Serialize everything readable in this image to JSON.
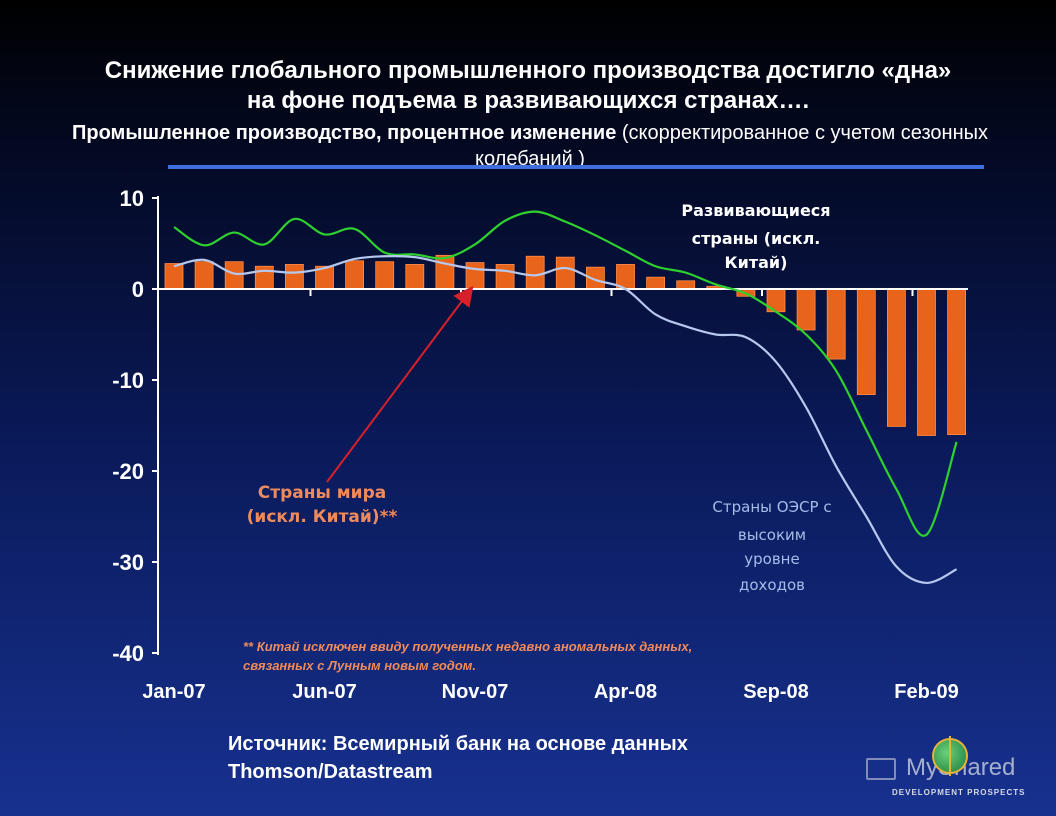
{
  "header": {
    "title_line1": "Снижение глобального промышленного производства достигло «дна»",
    "title_line2": "на фоне подъема в развивающихся странах….",
    "subtitle_bold": "Промышленное производство, процентное изменение",
    "subtitle_rest": " (скорректированное с учетом сезонных колебаний )"
  },
  "colors": {
    "bar": "#e8641a",
    "developing_line": "#2ed12e",
    "oecd_line": "#b6c8ee",
    "arrow": "#d6202a",
    "world_label": "#f08a5a",
    "oecd_label": "#a6bce8"
  },
  "chart_data": {
    "type": "bar+line",
    "x_tick_labels": [
      "Jan-07",
      "Jun-07",
      "Nov-07",
      "Apr-08",
      "Sep-08",
      "Feb-09"
    ],
    "y_tick_labels": [
      "10",
      "0",
      "-10",
      "-20",
      "-30",
      "-40"
    ],
    "ylim": [
      -40,
      10
    ],
    "categories": [
      "Jan-07",
      "Feb-07",
      "Mar-07",
      "Apr-07",
      "May-07",
      "Jun-07",
      "Jul-07",
      "Aug-07",
      "Sep-07",
      "Oct-07",
      "Nov-07",
      "Dec-07",
      "Jan-08",
      "Feb-08",
      "Mar-08",
      "Apr-08",
      "May-08",
      "Jun-08",
      "Jul-08",
      "Aug-08",
      "Sep-08",
      "Oct-08",
      "Nov-08",
      "Dec-08",
      "Jan-09",
      "Feb-09",
      "Mar-09"
    ],
    "series": [
      {
        "label_key": "world",
        "kind": "bar",
        "values": [
          2.8,
          3.0,
          3.0,
          2.5,
          2.7,
          2.5,
          3.1,
          3.0,
          2.7,
          3.7,
          2.9,
          2.7,
          3.6,
          3.5,
          2.4,
          2.7,
          1.3,
          0.9,
          0.3,
          -0.8,
          -2.5,
          -4.5,
          -7.7,
          -11.6,
          -15.1,
          -16.1,
          -16.0
        ]
      },
      {
        "label_key": "developing",
        "kind": "line",
        "values": [
          6.8,
          4.8,
          6.2,
          4.9,
          7.7,
          6.0,
          6.6,
          4.0,
          3.8,
          3.4,
          4.9,
          7.5,
          8.5,
          7.4,
          5.9,
          4.2,
          2.5,
          1.8,
          0.5,
          -0.5,
          -2.5,
          -5.0,
          -9.0,
          -15.5,
          -22.0,
          -27.0,
          -16.8
        ]
      },
      {
        "label_key": "oecd",
        "kind": "line",
        "values": [
          2.5,
          3.2,
          1.7,
          2.0,
          1.8,
          2.3,
          3.3,
          3.6,
          3.5,
          2.8,
          2.2,
          2.0,
          1.5,
          2.3,
          1.0,
          0.0,
          -2.8,
          -4.1,
          -5.0,
          -5.3,
          -8.0,
          -13.0,
          -19.5,
          -25.0,
          -30.5,
          -32.3,
          -30.8
        ]
      }
    ]
  },
  "labels": {
    "developing": [
      "Развивающиеся",
      "страны  (искл.",
      "Китай)"
    ],
    "world": [
      "Страны мира",
      "(искл. Китай)**"
    ],
    "oecd": [
      "Страны ОЭСР с",
      "высоким",
      "уровне",
      "доходов"
    ],
    "footnote": [
      "** Китай исключен ввиду полученных недавно аномальных данных,",
      "связанных с Лунным новым годом."
    ]
  },
  "source": {
    "line1": "Источник: Всемирный банк на основе данных",
    "line2": "Thomson/Datastream"
  },
  "logo": {
    "text": "MyShared",
    "tagline": "DEVELOPMENT PROSPECTS"
  }
}
